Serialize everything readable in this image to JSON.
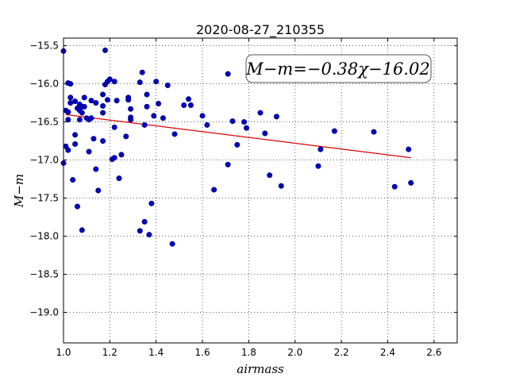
{
  "chart_data": {
    "type": "scatter",
    "title": "2020-08-27_210355",
    "xlabel": "airmass",
    "ylabel": "M−m",
    "xlim": [
      1.0,
      2.7
    ],
    "ylim": [
      -19.4,
      -15.4
    ],
    "y_inverted": true,
    "grid": true,
    "xticks": [
      1.0,
      1.2,
      1.4,
      1.6,
      1.8,
      2.0,
      2.2,
      2.4,
      2.6
    ],
    "xtick_labels": [
      "1.0",
      "1.2",
      "1.4",
      "1.6",
      "1.8",
      "2.0",
      "2.2",
      "2.4",
      "2.6"
    ],
    "yticks": [
      -15.5,
      -16.0,
      -16.5,
      -17.0,
      -17.5,
      -18.0,
      -18.5,
      -19.0
    ],
    "ytick_labels": [
      "−15.5",
      "−16.0",
      "−16.5",
      "−17.0",
      "−17.5",
      "−18.0",
      "−18.5",
      "−19.0"
    ],
    "annotation": "M−m=−0.38χ−16.02",
    "annotation_placement": "top-right",
    "colors": {
      "points": "#0000bf",
      "fit_line": "#e00000"
    },
    "fit": {
      "slope": -0.38,
      "intercept": -16.02,
      "x_range": [
        1.01,
        2.5
      ]
    },
    "series": [
      {
        "points": [
          [
            1.0,
            -15.57
          ],
          [
            1.0,
            -17.04
          ],
          [
            1.01,
            -16.35
          ],
          [
            1.01,
            -16.82
          ],
          [
            1.02,
            -15.99
          ],
          [
            1.02,
            -16.37
          ],
          [
            1.02,
            -16.47
          ],
          [
            1.02,
            -16.87
          ],
          [
            1.03,
            -16.18
          ],
          [
            1.03,
            -16.25
          ],
          [
            1.03,
            -16.0
          ],
          [
            1.04,
            -17.26
          ],
          [
            1.05,
            -16.23
          ],
          [
            1.05,
            -16.67
          ],
          [
            1.05,
            -16.79
          ],
          [
            1.06,
            -16.32
          ],
          [
            1.06,
            -17.61
          ],
          [
            1.07,
            -16.27
          ],
          [
            1.07,
            -16.35
          ],
          [
            1.07,
            -16.47
          ],
          [
            1.08,
            -16.3
          ],
          [
            1.08,
            -16.38
          ],
          [
            1.08,
            -17.92
          ],
          [
            1.09,
            -16.18
          ],
          [
            1.09,
            -16.3
          ],
          [
            1.1,
            -16.45
          ],
          [
            1.11,
            -16.89
          ],
          [
            1.11,
            -16.47
          ],
          [
            1.12,
            -16.22
          ],
          [
            1.12,
            -16.45
          ],
          [
            1.13,
            -16.72
          ],
          [
            1.14,
            -16.25
          ],
          [
            1.14,
            -17.12
          ],
          [
            1.15,
            -17.4
          ],
          [
            1.17,
            -16.14
          ],
          [
            1.17,
            -16.29
          ],
          [
            1.17,
            -16.38
          ],
          [
            1.17,
            -16.75
          ],
          [
            1.18,
            -15.56
          ],
          [
            1.18,
            -16.01
          ],
          [
            1.19,
            -15.97
          ],
          [
            1.19,
            -16.21
          ],
          [
            1.2,
            -15.94
          ],
          [
            1.21,
            -16.99
          ],
          [
            1.22,
            -15.97
          ],
          [
            1.22,
            -16.57
          ],
          [
            1.22,
            -16.97
          ],
          [
            1.23,
            -16.22
          ],
          [
            1.24,
            -17.24
          ],
          [
            1.25,
            -16.93
          ],
          [
            1.27,
            -16.69
          ],
          [
            1.28,
            -16.18
          ],
          [
            1.28,
            -16.21
          ],
          [
            1.29,
            -16.33
          ],
          [
            1.29,
            -16.44
          ],
          [
            1.29,
            -16.47
          ],
          [
            1.33,
            -15.98
          ],
          [
            1.33,
            -17.93
          ],
          [
            1.34,
            -15.85
          ],
          [
            1.35,
            -17.81
          ],
          [
            1.35,
            -16.54
          ],
          [
            1.36,
            -16.14
          ],
          [
            1.36,
            -16.3
          ],
          [
            1.37,
            -17.98
          ],
          [
            1.38,
            -17.57
          ],
          [
            1.39,
            -16.42
          ],
          [
            1.4,
            -15.97
          ],
          [
            1.41,
            -16.26
          ],
          [
            1.43,
            -16.45
          ],
          [
            1.45,
            -16.02
          ],
          [
            1.47,
            -18.1
          ],
          [
            1.48,
            -16.66
          ],
          [
            1.52,
            -16.28
          ],
          [
            1.54,
            -16.2
          ],
          [
            1.55,
            -16.28
          ],
          [
            1.6,
            -16.42
          ],
          [
            1.62,
            -16.54
          ],
          [
            1.65,
            -17.39
          ],
          [
            1.71,
            -15.87
          ],
          [
            1.71,
            -17.06
          ],
          [
            1.73,
            -16.49
          ],
          [
            1.75,
            -16.8
          ],
          [
            1.78,
            -16.5
          ],
          [
            1.79,
            -16.58
          ],
          [
            1.85,
            -16.38
          ],
          [
            1.87,
            -16.65
          ],
          [
            1.89,
            -17.2
          ],
          [
            1.92,
            -16.43
          ],
          [
            1.94,
            -17.34
          ],
          [
            2.1,
            -17.08
          ],
          [
            2.11,
            -16.86
          ],
          [
            2.17,
            -16.62
          ],
          [
            2.34,
            -16.63
          ],
          [
            2.43,
            -17.35
          ],
          [
            2.49,
            -16.86
          ],
          [
            2.5,
            -17.3
          ]
        ]
      }
    ]
  }
}
